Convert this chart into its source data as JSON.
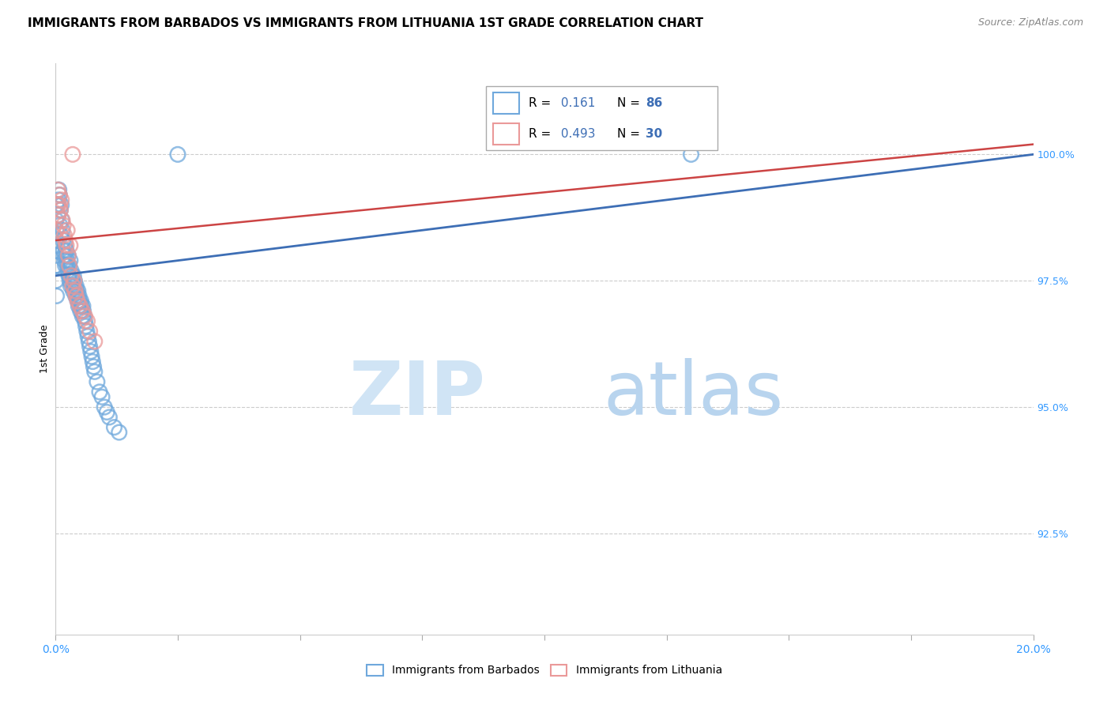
{
  "title": "IMMIGRANTS FROM BARBADOS VS IMMIGRANTS FROM LITHUANIA 1ST GRADE CORRELATION CHART",
  "source": "Source: ZipAtlas.com",
  "ylabel": "1st Grade",
  "yticks_right": [
    100.0,
    97.5,
    95.0,
    92.5
  ],
  "ytick_labels_right": [
    "100.0%",
    "97.5%",
    "95.0%",
    "92.5%"
  ],
  "xmin": 0.0,
  "xmax": 20.0,
  "ymin": 90.5,
  "ymax": 101.8,
  "R_barbados": 0.161,
  "N_barbados": 86,
  "R_lithuania": 0.493,
  "N_lithuania": 30,
  "color_barbados": "#6fa8dc",
  "color_lithuania": "#ea9999",
  "color_barbados_line": "#3d6eb5",
  "color_lithuania_line": "#cc4444",
  "legend_label_barbados": "Immigrants from Barbados",
  "legend_label_lithuania": "Immigrants from Lithuania",
  "watermark_zip_color": "#d0e4f5",
  "watermark_atlas_color": "#b8d4ee",
  "background_color": "#ffffff",
  "grid_color": "#cccccc",
  "title_fontsize": 11,
  "source_fontsize": 9,
  "barbados_x": [
    0.02,
    0.03,
    0.04,
    0.05,
    0.06,
    0.07,
    0.08,
    0.09,
    0.1,
    0.11,
    0.12,
    0.13,
    0.14,
    0.15,
    0.16,
    0.17,
    0.18,
    0.19,
    0.2,
    0.21,
    0.22,
    0.23,
    0.24,
    0.25,
    0.26,
    0.27,
    0.28,
    0.29,
    0.3,
    0.31,
    0.32,
    0.33,
    0.34,
    0.35,
    0.36,
    0.37,
    0.38,
    0.39,
    0.4,
    0.41,
    0.42,
    0.43,
    0.44,
    0.45,
    0.46,
    0.47,
    0.48,
    0.49,
    0.5,
    0.51,
    0.52,
    0.53,
    0.54,
    0.55,
    0.56,
    0.57,
    0.58,
    0.6,
    0.62,
    0.64,
    0.66,
    0.68,
    0.7,
    0.72,
    0.74,
    0.76,
    0.78,
    0.8,
    0.85,
    0.9,
    0.95,
    1.0,
    1.05,
    1.1,
    1.2,
    1.3,
    0.01,
    0.01,
    0.01,
    0.01,
    0.01,
    0.01,
    0.01,
    0.02,
    2.5,
    13.0
  ],
  "barbados_y": [
    97.8,
    98.2,
    99.0,
    98.8,
    99.1,
    99.3,
    99.2,
    98.6,
    98.9,
    98.4,
    99.0,
    98.7,
    98.5,
    98.3,
    98.1,
    98.0,
    97.9,
    98.2,
    97.8,
    98.0,
    98.1,
    97.9,
    97.8,
    97.7,
    98.0,
    97.6,
    97.8,
    97.5,
    97.9,
    97.4,
    97.7,
    97.6,
    97.5,
    97.4,
    97.3,
    97.6,
    97.4,
    97.5,
    97.3,
    97.2,
    97.4,
    97.3,
    97.2,
    97.1,
    97.3,
    97.0,
    97.2,
    97.1,
    97.0,
    96.9,
    97.1,
    97.0,
    96.9,
    96.8,
    97.0,
    96.9,
    96.8,
    96.7,
    96.6,
    96.5,
    96.4,
    96.3,
    96.2,
    96.1,
    96.0,
    95.9,
    95.8,
    95.7,
    95.5,
    95.3,
    95.2,
    95.0,
    94.9,
    94.8,
    94.6,
    94.5,
    97.5,
    97.8,
    98.0,
    98.3,
    98.5,
    98.7,
    99.0,
    97.2,
    100.0,
    100.0
  ],
  "lithuania_x": [
    0.02,
    0.04,
    0.06,
    0.08,
    0.1,
    0.12,
    0.14,
    0.16,
    0.18,
    0.2,
    0.22,
    0.24,
    0.26,
    0.28,
    0.3,
    0.32,
    0.35,
    0.38,
    0.4,
    0.42,
    0.45,
    0.5,
    0.55,
    0.6,
    0.65,
    0.7,
    0.8,
    0.05,
    0.08,
    0.35
  ],
  "lithuania_y": [
    98.5,
    99.0,
    98.8,
    99.2,
    98.9,
    99.1,
    98.7,
    98.6,
    98.4,
    98.3,
    98.2,
    98.5,
    98.0,
    97.8,
    98.2,
    97.6,
    97.4,
    97.5,
    97.3,
    97.2,
    97.1,
    97.0,
    96.9,
    96.8,
    96.7,
    96.5,
    96.3,
    99.3,
    99.0,
    100.0
  ],
  "trend_barbados_x0": 0.0,
  "trend_barbados_y0": 97.6,
  "trend_barbados_x1": 20.0,
  "trend_barbados_y1": 100.0,
  "trend_lithuania_x0": 0.0,
  "trend_lithuania_y0": 98.3,
  "trend_lithuania_x1": 20.0,
  "trend_lithuania_y1": 100.2
}
